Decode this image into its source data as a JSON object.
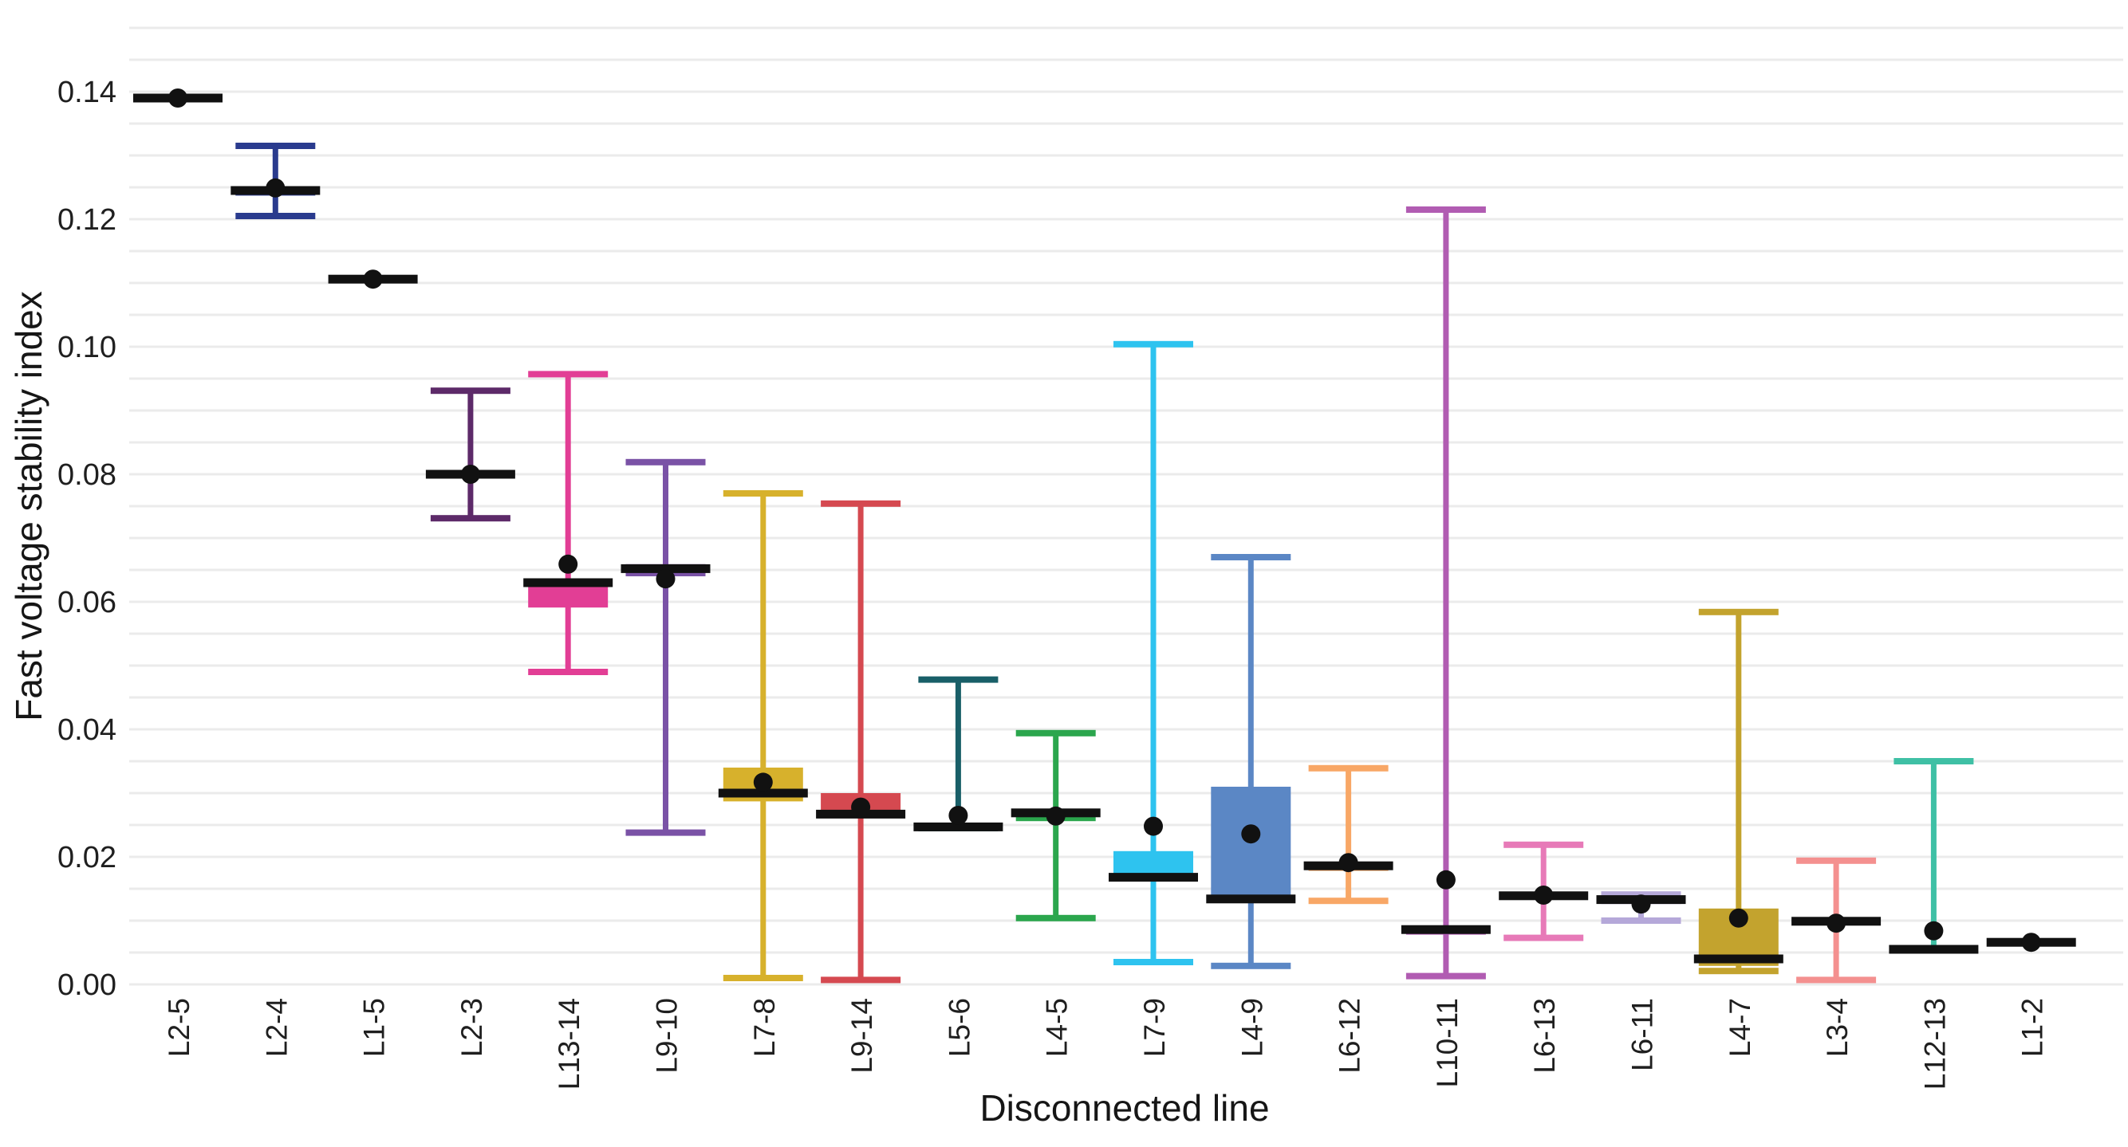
{
  "chart_data": {
    "type": "boxplot",
    "title": "",
    "xlabel": "Disconnected line",
    "ylabel": "Fast voltage stability index",
    "ylim": [
      0,
      0.1505
    ],
    "ytick_step": 0.02,
    "grid_step": 0.005,
    "grid": "on",
    "legend": "none",
    "yticks": [
      "0.00",
      "0.02",
      "0.04",
      "0.06",
      "0.08",
      "0.10",
      "0.12",
      "0.14"
    ],
    "categories": [
      "L2-5",
      "L2-4",
      "L1-5",
      "L2-3",
      "L13-14",
      "L9-10",
      "L7-8",
      "L9-14",
      "L5-6",
      "L4-5",
      "L7-9",
      "L4-9",
      "L6-12",
      "L10-11",
      "L6-13",
      "L6-11",
      "L4-7",
      "L3-4",
      "L12-13",
      "L1-2"
    ],
    "series": [
      {
        "line": "L2-5",
        "color": "#1a1a1a",
        "min": 0.139,
        "q1": 0.139,
        "median": 0.139,
        "q3": 0.139,
        "max": 0.139,
        "mean": 0.139,
        "whisker_top": false,
        "whisker_bottom": false
      },
      {
        "line": "L2-4",
        "color": "#2a3b8e",
        "min": 0.1205,
        "q1": 0.1237,
        "median": 0.1245,
        "q3": 0.1251,
        "max": 0.1315,
        "mean": 0.1249,
        "whisker_top": true,
        "whisker_bottom": true
      },
      {
        "line": "L1-5",
        "color": "#1a1a1a",
        "min": 0.1106,
        "q1": 0.1106,
        "median": 0.1106,
        "q3": 0.1106,
        "max": 0.1106,
        "mean": 0.1106,
        "whisker_top": false,
        "whisker_bottom": false
      },
      {
        "line": "L2-3",
        "color": "#5d2a69",
        "min": 0.0731,
        "q1": 0.0795,
        "median": 0.08,
        "q3": 0.0806,
        "max": 0.0931,
        "mean": 0.08,
        "whisker_top": true,
        "whisker_bottom": true
      },
      {
        "line": "L13-14",
        "color": "#e23e95",
        "min": 0.049,
        "q1": 0.0591,
        "median": 0.063,
        "q3": 0.0635,
        "max": 0.0957,
        "mean": 0.0659,
        "whisker_top": true,
        "whisker_bottom": true
      },
      {
        "line": "L9-10",
        "color": "#7a52a6",
        "min": 0.0238,
        "q1": 0.064,
        "median": 0.0652,
        "q3": 0.0659,
        "max": 0.0819,
        "mean": 0.0636,
        "whisker_top": true,
        "whisker_bottom": true
      },
      {
        "line": "L7-8",
        "color": "#d7b12c",
        "min": 0.001,
        "q1": 0.0287,
        "median": 0.03,
        "q3": 0.034,
        "max": 0.077,
        "mean": 0.0317,
        "whisker_top": true,
        "whisker_bottom": true
      },
      {
        "line": "L9-14",
        "color": "#d54950",
        "min": 0.0007,
        "q1": 0.0263,
        "median": 0.0267,
        "q3": 0.03,
        "max": 0.0754,
        "mean": 0.0278,
        "whisker_top": true,
        "whisker_bottom": true
      },
      {
        "line": "L5-6",
        "color": "#195f68",
        "min": 0.024,
        "q1": 0.024,
        "median": 0.0247,
        "q3": 0.0252,
        "max": 0.0478,
        "mean": 0.0265,
        "whisker_top": true,
        "whisker_bottom": false
      },
      {
        "line": "L4-5",
        "color": "#2ba64d",
        "min": 0.0104,
        "q1": 0.0256,
        "median": 0.0269,
        "q3": 0.0274,
        "max": 0.0394,
        "mean": 0.0264,
        "whisker_top": true,
        "whisker_bottom": true
      },
      {
        "line": "L7-9",
        "color": "#2ec3ef",
        "min": 0.0035,
        "q1": 0.0164,
        "median": 0.0168,
        "q3": 0.0209,
        "max": 0.1004,
        "mean": 0.0248,
        "whisker_top": true,
        "whisker_bottom": true
      },
      {
        "line": "L4-9",
        "color": "#5b87c5",
        "min": 0.0029,
        "q1": 0.0131,
        "median": 0.0134,
        "q3": 0.031,
        "max": 0.067,
        "mean": 0.0236,
        "whisker_top": true,
        "whisker_bottom": true
      },
      {
        "line": "L6-12",
        "color": "#f8a766",
        "min": 0.0131,
        "q1": 0.0178,
        "median": 0.0186,
        "q3": 0.0191,
        "max": 0.0339,
        "mean": 0.0191,
        "whisker_top": true,
        "whisker_bottom": true
      },
      {
        "line": "L10-11",
        "color": "#b15cb2",
        "min": 0.0013,
        "q1": 0.0078,
        "median": 0.0086,
        "q3": 0.0091,
        "max": 0.1215,
        "mean": 0.0164,
        "whisker_top": true,
        "whisker_bottom": true
      },
      {
        "line": "L6-13",
        "color": "#e77ab8",
        "min": 0.0073,
        "q1": 0.0136,
        "median": 0.0139,
        "q3": 0.0142,
        "max": 0.0219,
        "mean": 0.014,
        "whisker_top": true,
        "whisker_bottom": true
      },
      {
        "line": "L6-11",
        "color": "#b5a8d9",
        "min": 0.01,
        "q1": 0.0126,
        "median": 0.0133,
        "q3": 0.0139,
        "max": 0.0141,
        "mean": 0.0126,
        "whisker_top": true,
        "whisker_bottom": true
      },
      {
        "line": "L4-7",
        "color": "#c3a32e",
        "min": 0.0021,
        "q1": 0.0029,
        "median": 0.004,
        "q3": 0.0119,
        "max": 0.0584,
        "mean": 0.0104,
        "whisker_top": true,
        "whisker_bottom": true
      },
      {
        "line": "L3-4",
        "color": "#f4908f",
        "min": 0.0007,
        "q1": 0.0093,
        "median": 0.0099,
        "q3": 0.0104,
        "max": 0.0194,
        "mean": 0.0096,
        "whisker_top": true,
        "whisker_bottom": true
      },
      {
        "line": "L12-13",
        "color": "#3fc0a5",
        "min": 0.0052,
        "q1": 0.0052,
        "median": 0.0055,
        "q3": 0.0057,
        "max": 0.035,
        "mean": 0.0084,
        "whisker_top": true,
        "whisker_bottom": false
      },
      {
        "line": "L1-2",
        "color": "#1a1a1a",
        "min": 0.0066,
        "q1": 0.0066,
        "median": 0.0066,
        "q3": 0.0066,
        "max": 0.0066,
        "mean": 0.0066,
        "whisker_top": false,
        "whisker_bottom": false
      }
    ],
    "marker_colors": {
      "median": "#111111",
      "mean_dot": "#111111",
      "gridline": "#ebebeb"
    }
  }
}
